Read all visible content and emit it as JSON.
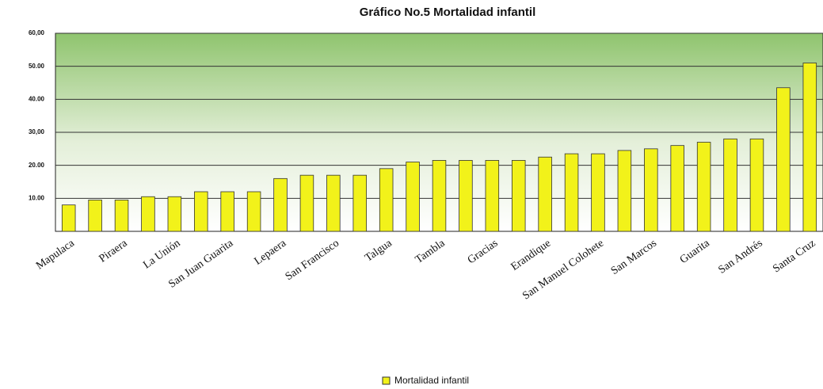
{
  "chart_data": {
    "type": "bar",
    "title": "Gráfico No.5 Mortalidad infantil",
    "categories": [
      "Mapulaca",
      null,
      "Piraera",
      null,
      "La Unión",
      null,
      "San Juan Guarita",
      null,
      "Lepaera",
      null,
      "San Francisco",
      null,
      "Talgua",
      null,
      "Tambla",
      null,
      "Gracias",
      null,
      "Erandique",
      null,
      "San Manuel Colohete",
      null,
      "San Marcos",
      null,
      "Guarita",
      null,
      "San Andrés",
      null,
      "Santa Cruz"
    ],
    "series": [
      {
        "name": "Mortalidad infantil",
        "color": "#f2f21a",
        "values": [
          8,
          9.5,
          9.5,
          10.5,
          10.5,
          12,
          12,
          12,
          16,
          17,
          17,
          17,
          19,
          21,
          21.5,
          21.5,
          21.5,
          21.5,
          22.5,
          23.5,
          23.5,
          24.5,
          25,
          26,
          27,
          28,
          28,
          43.5,
          51
        ]
      }
    ],
    "ylim": [
      0,
      60
    ],
    "yticks": [
      {
        "value": 10,
        "label": "10.00"
      },
      {
        "value": 20,
        "label": "20.00"
      },
      {
        "value": 30,
        "label": "30,00"
      },
      {
        "value": 40,
        "label": "40.00"
      },
      {
        "value": 50,
        "label": "50.00"
      },
      {
        "value": 60,
        "label": "60,00"
      }
    ],
    "grid": true,
    "legend": "bottom"
  }
}
